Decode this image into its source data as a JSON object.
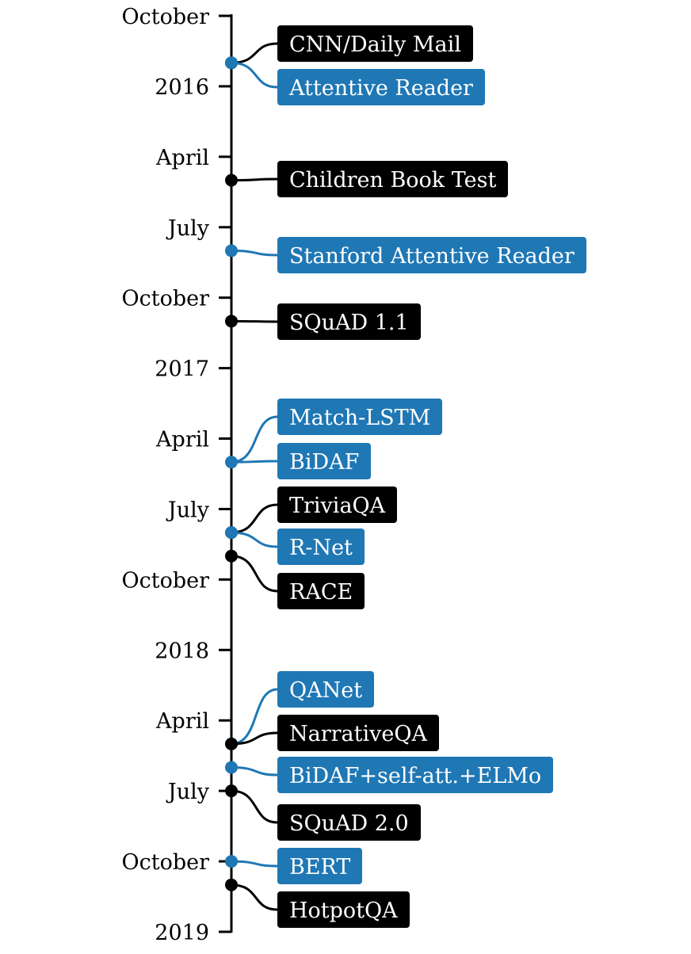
{
  "colors": {
    "dataset": "#000000",
    "model": "#1f77b4",
    "axis": "#000000",
    "label_text": "#ffffff",
    "background": "#ffffff"
  },
  "legend_kinds": {
    "dataset": "black",
    "model": "blue"
  },
  "axis": {
    "start": "2015-10",
    "end": "2019-01",
    "ticks": [
      {
        "label": "October",
        "value": "2015-10"
      },
      {
        "label": "2016",
        "value": "2016-01"
      },
      {
        "label": "April",
        "value": "2016-04"
      },
      {
        "label": "July",
        "value": "2016-07"
      },
      {
        "label": "October",
        "value": "2016-10"
      },
      {
        "label": "2017",
        "value": "2017-01"
      },
      {
        "label": "April",
        "value": "2017-04"
      },
      {
        "label": "July",
        "value": "2017-07"
      },
      {
        "label": "October",
        "value": "2017-10"
      },
      {
        "label": "2018",
        "value": "2018-01"
      },
      {
        "label": "April",
        "value": "2018-04"
      },
      {
        "label": "July",
        "value": "2018-07"
      },
      {
        "label": "October",
        "value": "2018-10"
      },
      {
        "label": "2019",
        "value": "2019-01"
      }
    ]
  },
  "events": [
    {
      "label": "CNN/Daily Mail",
      "kind": "dataset",
      "date": "2015-12"
    },
    {
      "label": "Attentive Reader",
      "kind": "model",
      "date": "2015-12"
    },
    {
      "label": "Children Book Test",
      "kind": "dataset",
      "date": "2016-05"
    },
    {
      "label": "Stanford Attentive Reader",
      "kind": "model",
      "date": "2016-08"
    },
    {
      "label": "SQuAD 1.1",
      "kind": "dataset",
      "date": "2016-11"
    },
    {
      "label": "Match-LSTM",
      "kind": "model",
      "date": "2017-05"
    },
    {
      "label": "BiDAF",
      "kind": "model",
      "date": "2017-05"
    },
    {
      "label": "TriviaQA",
      "kind": "dataset",
      "date": "2017-08"
    },
    {
      "label": "R-Net",
      "kind": "model",
      "date": "2017-08"
    },
    {
      "label": "RACE",
      "kind": "dataset",
      "date": "2017-09"
    },
    {
      "label": "QANet",
      "kind": "model",
      "date": "2018-05"
    },
    {
      "label": "NarrativeQA",
      "kind": "dataset",
      "date": "2018-05"
    },
    {
      "label": "BiDAF+self-att.+ELMo",
      "kind": "model",
      "date": "2018-06"
    },
    {
      "label": "SQuAD 2.0",
      "kind": "dataset",
      "date": "2018-07"
    },
    {
      "label": "BERT",
      "kind": "model",
      "date": "2018-10"
    },
    {
      "label": "HotpotQA",
      "kind": "dataset",
      "date": "2018-11"
    }
  ]
}
